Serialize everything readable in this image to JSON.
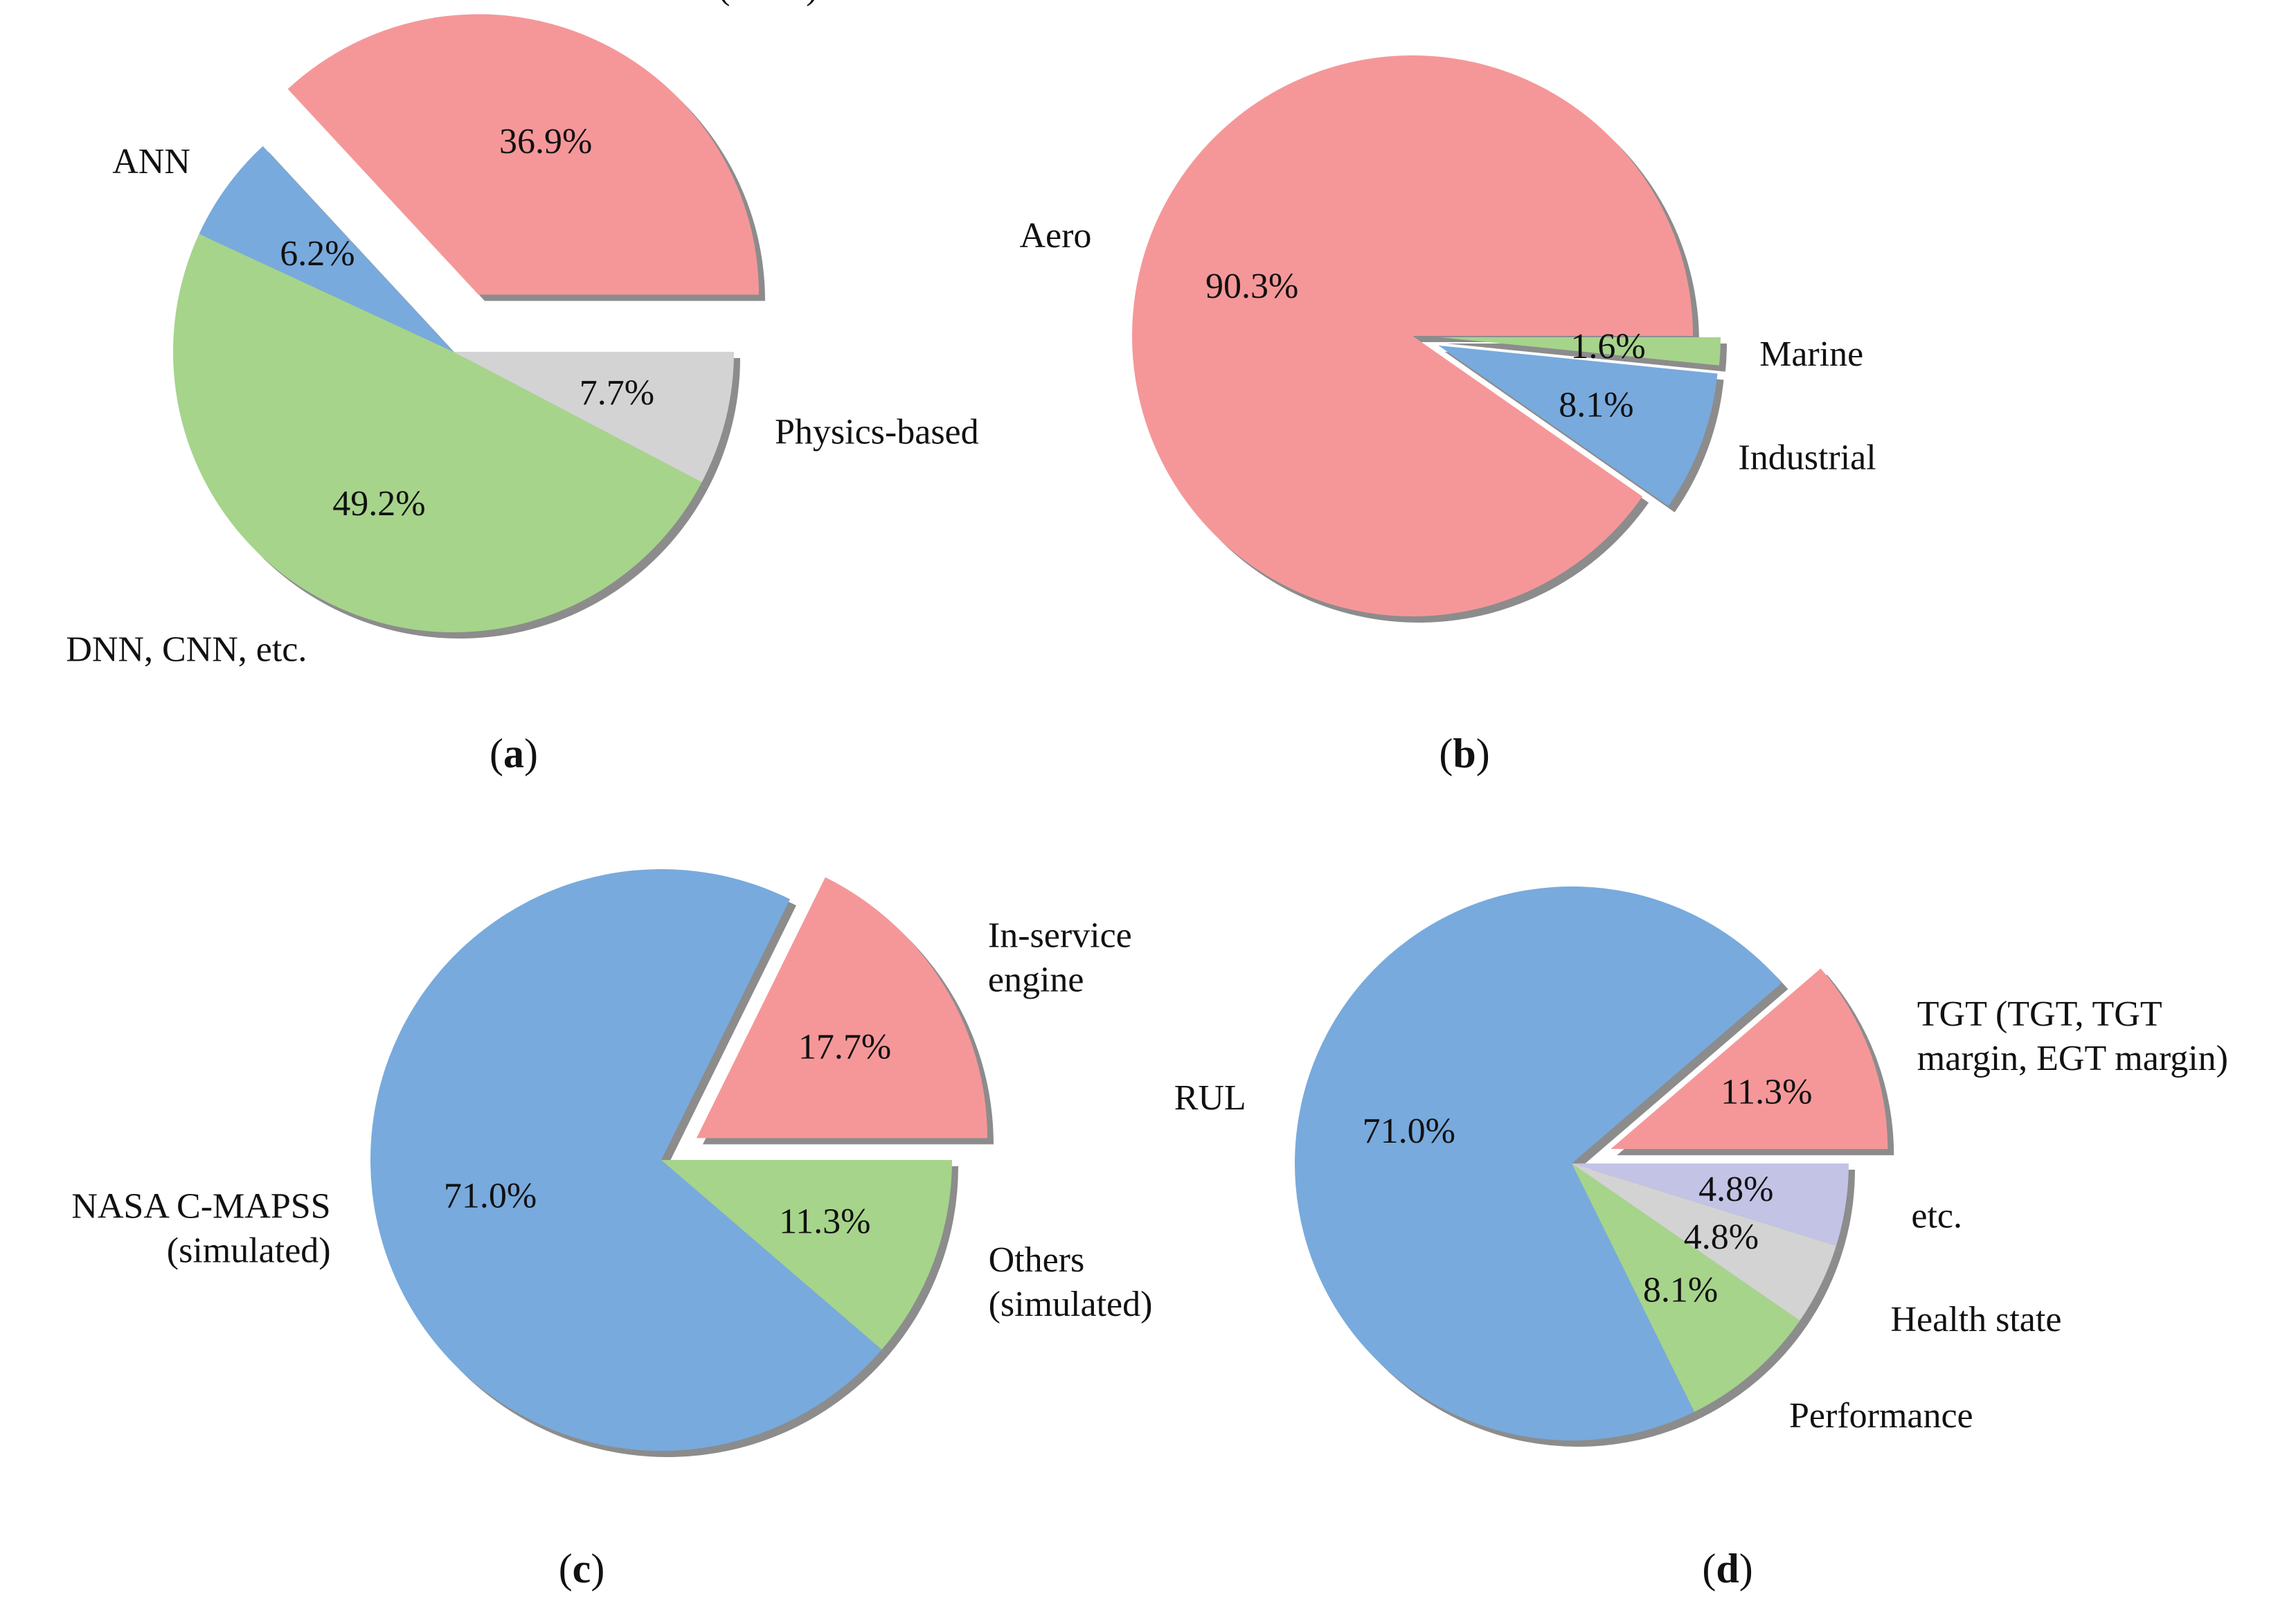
{
  "chart_data": [
    {
      "type": "pie",
      "panel": "a",
      "caption": {
        "open": "(",
        "letter": "a",
        "close": ")"
      },
      "slices": [
        {
          "label": [
            "LSTM (RNN)"
          ],
          "value": 36.9,
          "pct_text": "36.9%",
          "color": "#f59799",
          "exploded": true
        },
        {
          "label": [
            "ANN"
          ],
          "value": 6.2,
          "pct_text": "6.2%",
          "color": "#78aadd",
          "exploded": false
        },
        {
          "label": [
            "DNN, CNN, etc."
          ],
          "value": 49.2,
          "pct_text": "49.2%",
          "color": "#a6d48b",
          "exploded": false
        },
        {
          "label": [
            "Physics-based"
          ],
          "value": 7.7,
          "pct_text": "7.7%",
          "color": "#d3d3d3",
          "exploded": false
        }
      ]
    },
    {
      "type": "pie",
      "panel": "b",
      "caption": {
        "open": "(",
        "letter": "b",
        "close": ")"
      },
      "slices": [
        {
          "label": [
            "Aero"
          ],
          "value": 90.3,
          "pct_text": "90.3%",
          "color": "#f59799",
          "exploded": false
        },
        {
          "label": [
            "Industrial"
          ],
          "value": 8.1,
          "pct_text": "8.1%",
          "color": "#78aadd",
          "exploded": true
        },
        {
          "label": [
            "Marine"
          ],
          "value": 1.6,
          "pct_text": "1.6%",
          "color": "#a6d48b",
          "exploded": true
        }
      ]
    },
    {
      "type": "pie",
      "panel": "c",
      "caption": {
        "open": "(",
        "letter": "c",
        "close": ")"
      },
      "slices": [
        {
          "label": [
            "In-service",
            "engine"
          ],
          "value": 17.7,
          "pct_text": "17.7%",
          "color": "#f59799",
          "exploded": true
        },
        {
          "label": [
            "NASA C-MAPSS",
            "(simulated)"
          ],
          "value": 71.0,
          "pct_text": "71.0%",
          "color": "#78aadd",
          "exploded": false
        },
        {
          "label": [
            "Others",
            "(simulated)"
          ],
          "value": 11.3,
          "pct_text": "11.3%",
          "color": "#a6d48b",
          "exploded": false
        }
      ]
    },
    {
      "type": "pie",
      "panel": "d",
      "caption": {
        "open": "(",
        "letter": "d",
        "close": ")"
      },
      "slices": [
        {
          "label": [
            "TGT (TGT, TGT",
            "margin, EGT margin)"
          ],
          "value": 11.3,
          "pct_text": "11.3%",
          "color": "#f59799",
          "exploded": true
        },
        {
          "label": [
            "RUL"
          ],
          "value": 71.0,
          "pct_text": "71.0%",
          "color": "#78aadd",
          "exploded": false
        },
        {
          "label": [
            "Performance"
          ],
          "value": 8.1,
          "pct_text": "8.1%",
          "color": "#a6d48b",
          "exploded": false
        },
        {
          "label": [
            "Health state"
          ],
          "value": 4.8,
          "pct_text": "4.8%",
          "color": "#d3d3d3",
          "exploded": false
        },
        {
          "label": [
            "etc."
          ],
          "value": 4.8,
          "pct_text": "4.8%",
          "color": "#c3c3e6",
          "exploded": false
        }
      ]
    }
  ]
}
